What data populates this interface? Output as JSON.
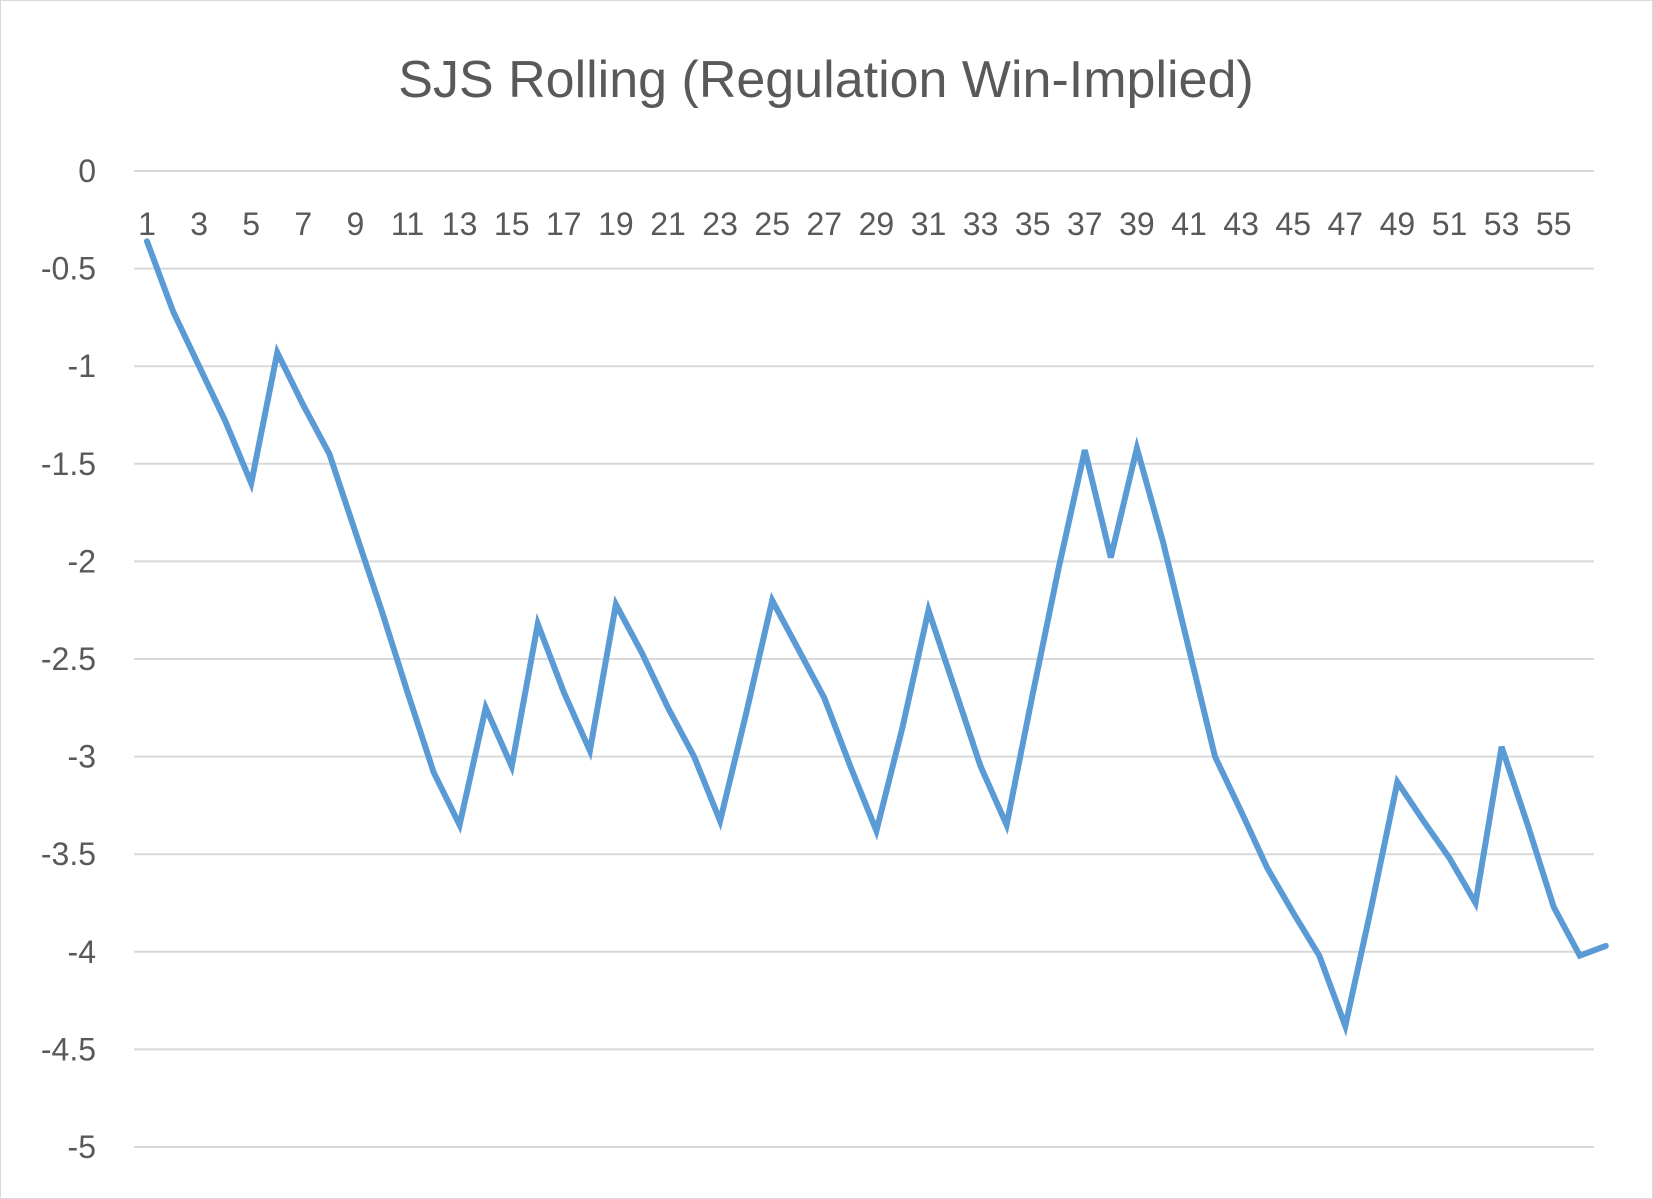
{
  "chart_data": {
    "type": "line",
    "title": "SJS Rolling (Regulation Win-Implied)",
    "xlabel": "",
    "ylabel": "",
    "x_tick_labels": [
      "1",
      "3",
      "5",
      "7",
      "9",
      "11",
      "13",
      "15",
      "17",
      "19",
      "21",
      "23",
      "25",
      "27",
      "29",
      "31",
      "33",
      "35",
      "37",
      "39",
      "41",
      "43",
      "45",
      "47",
      "49",
      "51",
      "53",
      "55"
    ],
    "y_tick_labels": [
      "0",
      "-0.5",
      "-1",
      "-1.5",
      "-2",
      "-2.5",
      "-3",
      "-3.5",
      "-4",
      "-4.5",
      "-5"
    ],
    "ylim": [
      -5,
      0
    ],
    "grid": true,
    "legend": "none",
    "x": [
      1,
      2,
      3,
      4,
      5,
      6,
      7,
      8,
      9,
      10,
      11,
      12,
      13,
      14,
      15,
      16,
      17,
      18,
      19,
      20,
      21,
      22,
      23,
      24,
      25,
      26,
      27,
      28,
      29,
      30,
      31,
      32,
      33,
      34,
      35,
      36,
      37,
      38,
      39,
      40,
      41,
      42,
      43,
      44,
      45,
      46,
      47,
      48,
      49,
      50,
      51,
      52,
      53,
      54,
      55,
      56,
      57
    ],
    "series": [
      {
        "color": "#5b9bd5",
        "values": [
          -0.36,
          -0.72,
          -1.0,
          -1.28,
          -1.6,
          -0.93,
          -1.2,
          -1.45,
          -1.85,
          -2.25,
          -2.67,
          -3.08,
          -3.35,
          -2.75,
          -3.05,
          -2.32,
          -2.67,
          -2.97,
          -2.22,
          -2.47,
          -2.75,
          -3.0,
          -3.33,
          -2.78,
          -2.2,
          -2.45,
          -2.7,
          -3.05,
          -3.38,
          -2.85,
          -2.25,
          -2.65,
          -3.05,
          -3.35,
          -2.68,
          -2.03,
          -1.43,
          -1.98,
          -1.42,
          -1.9,
          -2.45,
          -3.0,
          -3.28,
          -3.57,
          -3.8,
          -4.02,
          -4.38,
          -3.77,
          -3.13,
          -3.33,
          -3.52,
          -3.75,
          -2.95,
          -3.35,
          -3.77,
          -4.02,
          -3.97
        ]
      }
    ]
  }
}
